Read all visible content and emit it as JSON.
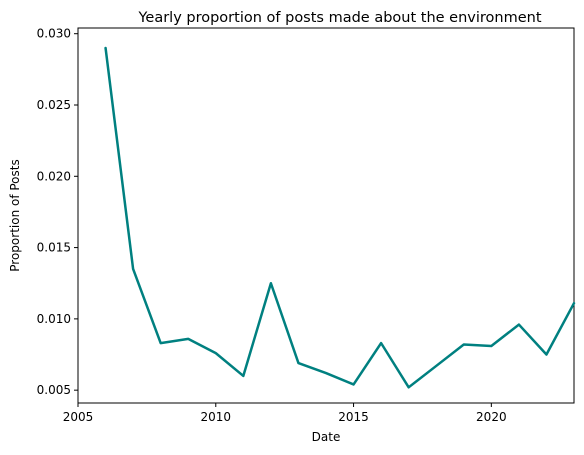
{
  "chart_data": {
    "type": "line",
    "title": "Yearly proportion of posts made about the environment",
    "xlabel": "Date",
    "ylabel": "Proportion of Posts",
    "xlim": [
      2005,
      2023
    ],
    "ylim": [
      0.0041,
      0.0304
    ],
    "grid": false,
    "x_ticks": [
      2005,
      2010,
      2015,
      2020
    ],
    "x_tick_labels": [
      "2005",
      "2010",
      "2015",
      "2020"
    ],
    "y_ticks": [
      0.005,
      0.01,
      0.015,
      0.02,
      0.025,
      0.03
    ],
    "y_tick_labels": [
      "0.005",
      "0.010",
      "0.015",
      "0.020",
      "0.025",
      "0.030"
    ],
    "series": [
      {
        "color": "#008080",
        "x": [
          2006,
          2007,
          2008,
          2009,
          2010,
          2011,
          2012,
          2013,
          2014,
          2015,
          2016,
          2017,
          2018,
          2019,
          2020,
          2021,
          2022,
          2023
        ],
        "values": [
          0.029,
          0.0135,
          0.0083,
          0.0086,
          0.0076,
          0.006,
          0.0125,
          0.0069,
          0.0062,
          0.0054,
          0.0083,
          0.0052,
          0.0067,
          0.0082,
          0.0081,
          0.0096,
          0.0075,
          0.0111
        ]
      }
    ]
  }
}
